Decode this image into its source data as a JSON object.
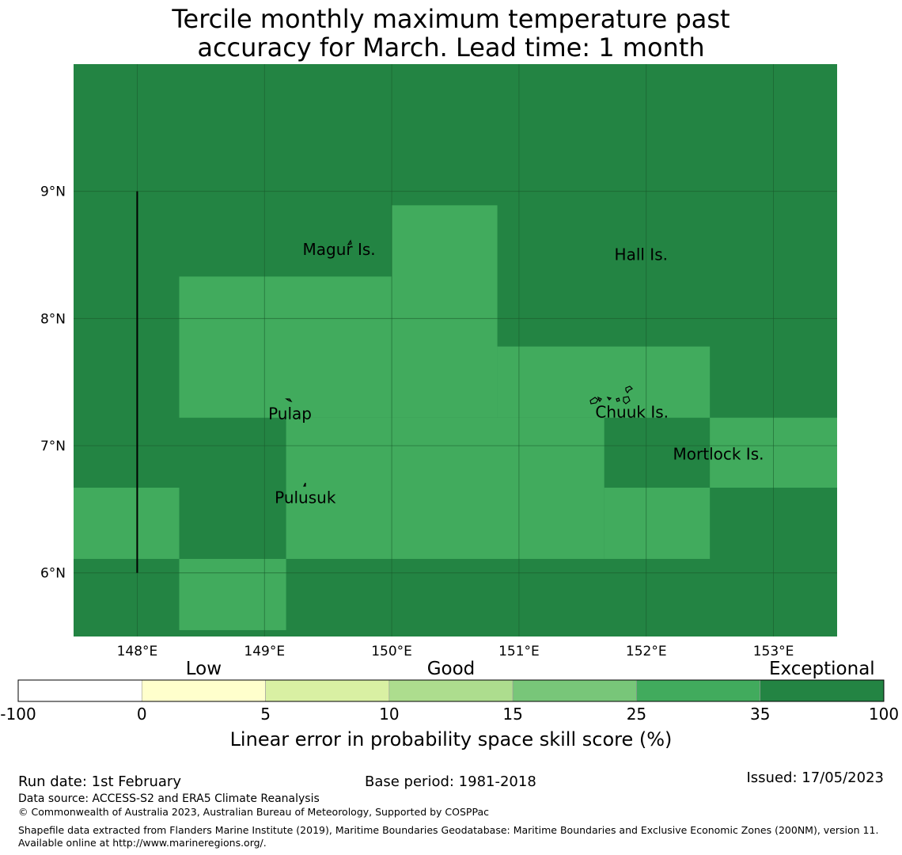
{
  "title": {
    "line1": "Tercile monthly maximum temperature past",
    "line2": "accuracy for March. Lead time: 1 month"
  },
  "map": {
    "lon_min": 147.5,
    "lon_max": 153.5,
    "lat_min": 5.5,
    "lat_max": 10.0,
    "x_ticks": [
      {
        "lon": 148,
        "label": "148°E"
      },
      {
        "lon": 149,
        "label": "149°E"
      },
      {
        "lon": 150,
        "label": "150°E"
      },
      {
        "lon": 151,
        "label": "151°E"
      },
      {
        "lon": 152,
        "label": "152°E"
      },
      {
        "lon": 153,
        "label": "153°E"
      }
    ],
    "y_ticks": [
      {
        "lat": 9,
        "label": "9°N"
      },
      {
        "lat": 8,
        "label": "8°N"
      },
      {
        "lat": 7,
        "label": "7°N"
      },
      {
        "lat": 6,
        "label": "6°N"
      }
    ],
    "colors": {
      "exceptional": "#238443",
      "very_good": "#41ab5d",
      "grid": "#1a5a2c"
    },
    "background_category": "exceptional",
    "cells": [
      {
        "lon": [
          148.33,
          150.0
        ],
        "lat": [
          7.22,
          8.33
        ],
        "category": "very_good"
      },
      {
        "lon": [
          150.0,
          150.83
        ],
        "lat": [
          7.22,
          8.89
        ],
        "category": "very_good"
      },
      {
        "lon": [
          150.83,
          152.5
        ],
        "lat": [
          7.22,
          7.78
        ],
        "category": "very_good"
      },
      {
        "lon": [
          149.17,
          151.67
        ],
        "lat": [
          6.11,
          7.22
        ],
        "category": "very_good"
      },
      {
        "lon": [
          151.67,
          152.5
        ],
        "lat": [
          6.11,
          6.67
        ],
        "category": "very_good"
      },
      {
        "lon": [
          152.5,
          153.5
        ],
        "lat": [
          6.67,
          7.22
        ],
        "category": "very_good"
      },
      {
        "lon": [
          147.5,
          148.33
        ],
        "lat": [
          6.11,
          6.67
        ],
        "category": "very_good"
      },
      {
        "lon": [
          148.33,
          149.17
        ],
        "lat": [
          5.55,
          6.11
        ],
        "category": "very_good"
      }
    ],
    "boundary_line": {
      "lon": 148.0,
      "lat": [
        6.0,
        9.0
      ]
    },
    "places": [
      {
        "name": "Magur Is.",
        "lon": 149.3,
        "lat": 8.5
      },
      {
        "name": "Hall Is.",
        "lon": 151.75,
        "lat": 8.46
      },
      {
        "name": "Pulap",
        "lon": 149.03,
        "lat": 7.21
      },
      {
        "name": "Chuuk Is.",
        "lon": 151.6,
        "lat": 7.22
      },
      {
        "name": "Mortlock Is.",
        "lon": 152.21,
        "lat": 6.89
      },
      {
        "name": "Pulusuk",
        "lon": 149.08,
        "lat": 6.55
      }
    ]
  },
  "colorbar": {
    "category_labels": [
      "Low",
      "Good",
      "Exceptional"
    ],
    "ticks": [
      "-100",
      "0",
      "5",
      "10",
      "15",
      "25",
      "35",
      "100"
    ],
    "bins": [
      {
        "from": "-100",
        "to": "0",
        "color": "#ffffff"
      },
      {
        "from": "0",
        "to": "5",
        "color": "#ffffcc"
      },
      {
        "from": "5",
        "to": "10",
        "color": "#d9f0a3"
      },
      {
        "from": "10",
        "to": "15",
        "color": "#addd8e"
      },
      {
        "from": "15",
        "to": "25",
        "color": "#78c679"
      },
      {
        "from": "25",
        "to": "35",
        "color": "#41ab5d"
      },
      {
        "from": "35",
        "to": "100",
        "color": "#238443"
      }
    ],
    "label": "Linear error in probability space skill score (%)"
  },
  "footer": {
    "run_date": "Run date: 1st February",
    "base_period": "Base period: 1981-2018",
    "issued": "Issued: 17/05/2023",
    "data_source": "Data source: ACCESS-S2 and ERA5 Climate Reanalysis",
    "copyright": "© Commonwealth of Australia 2023, Australian Bureau of Meteorology, Supported by COSPPac",
    "shapefile": "Shapefile data extracted from Flanders Marine Institute (2019), Maritime Boundaries Geodatabase: Maritime Boundaries and Exclusive Economic Zones (200NM), version 11. Available online at http://www.marineregions.org/."
  }
}
